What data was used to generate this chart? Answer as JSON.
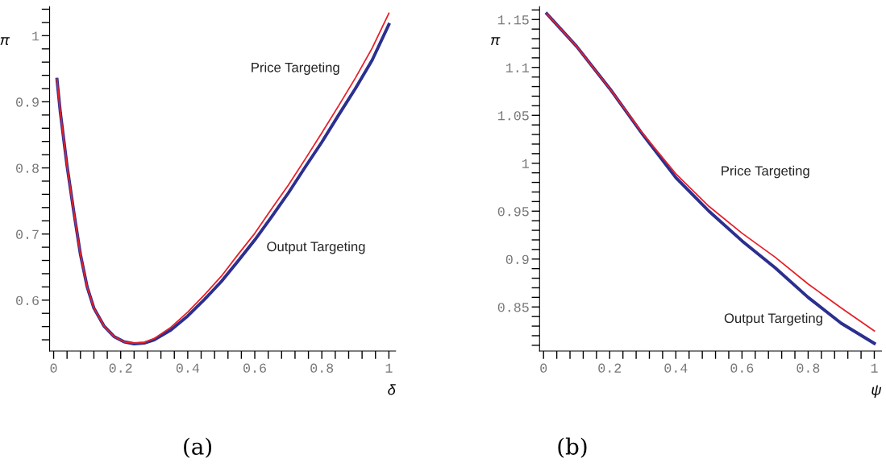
{
  "chart_data": [
    {
      "type": "line",
      "xlabel": "δ",
      "ylabel": "π",
      "annotations": [
        "(a)"
      ],
      "xlim": [
        -0.012,
        1.02
      ],
      "ylim": [
        0.523,
        1.044
      ],
      "xticks": [
        0,
        {
          "value": 0.04,
          "label": null
        },
        {
          "value": 0.08,
          "label": null
        },
        {
          "value": 0.12,
          "label": null
        },
        {
          "value": 0.16,
          "label": null
        },
        0.2,
        {
          "value": 0.24,
          "label": null
        },
        {
          "value": 0.28,
          "label": null
        },
        {
          "value": 0.32,
          "label": null
        },
        {
          "value": 0.36,
          "label": null
        },
        0.4,
        {
          "value": 0.44,
          "label": null
        },
        {
          "value": 0.48,
          "label": null
        },
        {
          "value": 0.52,
          "label": null
        },
        {
          "value": 0.56,
          "label": null
        },
        0.6,
        {
          "value": 0.64,
          "label": null
        },
        {
          "value": 0.68,
          "label": null
        },
        {
          "value": 0.72,
          "label": null
        },
        {
          "value": 0.76,
          "label": null
        },
        0.8,
        {
          "value": 0.84,
          "label": null
        },
        {
          "value": 0.88,
          "label": null
        },
        {
          "value": 0.92,
          "label": null
        },
        {
          "value": 0.96,
          "label": null
        },
        1
      ],
      "yticks": [
        {
          "value": 0.54,
          "label": null
        },
        {
          "value": 0.56,
          "label": null
        },
        {
          "value": 0.58,
          "label": null
        },
        0.6,
        {
          "value": 0.62,
          "label": null
        },
        {
          "value": 0.64,
          "label": null
        },
        {
          "value": 0.66,
          "label": null
        },
        {
          "value": 0.68,
          "label": null
        },
        0.7,
        {
          "value": 0.72,
          "label": null
        },
        {
          "value": 0.74,
          "label": null
        },
        {
          "value": 0.76,
          "label": null
        },
        {
          "value": 0.78,
          "label": null
        },
        0.8,
        {
          "value": 0.82,
          "label": null
        },
        {
          "value": 0.84,
          "label": null
        },
        {
          "value": 0.86,
          "label": null
        },
        {
          "value": 0.88,
          "label": null
        },
        0.9,
        {
          "value": 0.92,
          "label": null
        },
        {
          "value": 0.94,
          "label": null
        },
        {
          "value": 0.96,
          "label": null
        },
        {
          "value": 0.98,
          "label": null
        },
        1,
        {
          "value": 1.02,
          "label": null
        },
        {
          "value": 1.04,
          "label": null
        }
      ],
      "series": [
        {
          "name": "Price Targeting",
          "color": "#e8202a",
          "x": [
            0.01,
            0.02,
            0.04,
            0.06,
            0.08,
            0.1,
            0.12,
            0.15,
            0.18,
            0.21,
            0.24,
            0.27,
            0.3,
            0.35,
            0.4,
            0.45,
            0.5,
            0.55,
            0.6,
            0.65,
            0.7,
            0.75,
            0.8,
            0.85,
            0.9,
            0.95,
            1.0
          ],
          "values": [
            0.934,
            0.884,
            0.803,
            0.734,
            0.669,
            0.62,
            0.588,
            0.561,
            0.545,
            0.537,
            0.535,
            0.536,
            0.542,
            0.559,
            0.582,
            0.608,
            0.636,
            0.669,
            0.701,
            0.738,
            0.774,
            0.813,
            0.853,
            0.894,
            0.936,
            0.981,
            1.034
          ]
        },
        {
          "name": "Output Targeting",
          "color": "#2b2f8f",
          "x": [
            0.01,
            0.02,
            0.04,
            0.06,
            0.08,
            0.1,
            0.12,
            0.15,
            0.18,
            0.21,
            0.24,
            0.27,
            0.3,
            0.35,
            0.4,
            0.45,
            0.5,
            0.55,
            0.6,
            0.65,
            0.7,
            0.75,
            0.8,
            0.85,
            0.9,
            0.95,
            1.0
          ],
          "values": [
            0.934,
            0.884,
            0.803,
            0.734,
            0.669,
            0.62,
            0.588,
            0.561,
            0.545,
            0.537,
            0.534,
            0.535,
            0.54,
            0.555,
            0.576,
            0.601,
            0.628,
            0.659,
            0.691,
            0.726,
            0.762,
            0.801,
            0.839,
            0.88,
            0.92,
            0.963,
            1.017
          ]
        }
      ]
    },
    {
      "type": "line",
      "xlabel": "ψ",
      "ylabel": "π",
      "annotations": [
        "(b)"
      ],
      "xlim": [
        -0.012,
        1.022
      ],
      "ylim": [
        0.804,
        1.1635
      ],
      "xticks": [
        0,
        {
          "value": 0.04,
          "label": null
        },
        {
          "value": 0.08,
          "label": null
        },
        {
          "value": 0.12,
          "label": null
        },
        {
          "value": 0.16,
          "label": null
        },
        0.2,
        {
          "value": 0.24,
          "label": null
        },
        {
          "value": 0.28,
          "label": null
        },
        {
          "value": 0.32,
          "label": null
        },
        {
          "value": 0.36,
          "label": null
        },
        0.4,
        {
          "value": 0.44,
          "label": null
        },
        {
          "value": 0.48,
          "label": null
        },
        {
          "value": 0.52,
          "label": null
        },
        {
          "value": 0.56,
          "label": null
        },
        0.6,
        {
          "value": 0.64,
          "label": null
        },
        {
          "value": 0.68,
          "label": null
        },
        {
          "value": 0.72,
          "label": null
        },
        {
          "value": 0.76,
          "label": null
        },
        0.8,
        {
          "value": 0.84,
          "label": null
        },
        {
          "value": 0.88,
          "label": null
        },
        {
          "value": 0.92,
          "label": null
        },
        {
          "value": 0.96,
          "label": null
        },
        1
      ],
      "yticks": [
        {
          "value": 0.81,
          "label": null
        },
        {
          "value": 0.82,
          "label": null
        },
        {
          "value": 0.83,
          "label": null
        },
        {
          "value": 0.84,
          "label": null
        },
        0.85,
        {
          "value": 0.86,
          "label": null
        },
        {
          "value": 0.87,
          "label": null
        },
        {
          "value": 0.88,
          "label": null
        },
        {
          "value": 0.89,
          "label": null
        },
        0.9,
        {
          "value": 0.91,
          "label": null
        },
        {
          "value": 0.92,
          "label": null
        },
        {
          "value": 0.93,
          "label": null
        },
        {
          "value": 0.94,
          "label": null
        },
        0.95,
        {
          "value": 0.96,
          "label": null
        },
        {
          "value": 0.97,
          "label": null
        },
        {
          "value": 0.98,
          "label": null
        },
        {
          "value": 0.99,
          "label": null
        },
        1,
        {
          "value": 1.01,
          "label": null
        },
        {
          "value": 1.02,
          "label": null
        },
        {
          "value": 1.03,
          "label": null
        },
        {
          "value": 1.04,
          "label": null
        },
        1.05,
        {
          "value": 1.06,
          "label": null
        },
        {
          "value": 1.07,
          "label": null
        },
        {
          "value": 1.08,
          "label": null
        },
        {
          "value": 1.09,
          "label": null
        },
        1.1,
        {
          "value": 1.11,
          "label": null
        },
        {
          "value": 1.12,
          "label": null
        },
        {
          "value": 1.13,
          "label": null
        },
        {
          "value": 1.14,
          "label": null
        },
        1.15,
        {
          "value": 1.16,
          "label": null
        }
      ],
      "series": [
        {
          "name": "Price Targeting",
          "color": "#e8202a",
          "x": [
            0.01,
            0.1,
            0.2,
            0.3,
            0.4,
            0.5,
            0.6,
            0.7,
            0.8,
            0.9,
            1.0
          ],
          "values": [
            1.156,
            1.122,
            1.078,
            1.031,
            0.989,
            0.955,
            0.927,
            0.902,
            0.874,
            0.849,
            0.825
          ]
        },
        {
          "name": "Output Targeting",
          "color": "#2b2f8f",
          "x": [
            0.01,
            0.1,
            0.2,
            0.3,
            0.4,
            0.5,
            0.6,
            0.7,
            0.8,
            0.9,
            1.0
          ],
          "values": [
            1.156,
            1.122,
            1.078,
            1.03,
            0.985,
            0.95,
            0.919,
            0.891,
            0.86,
            0.833,
            0.812
          ]
        }
      ]
    }
  ]
}
